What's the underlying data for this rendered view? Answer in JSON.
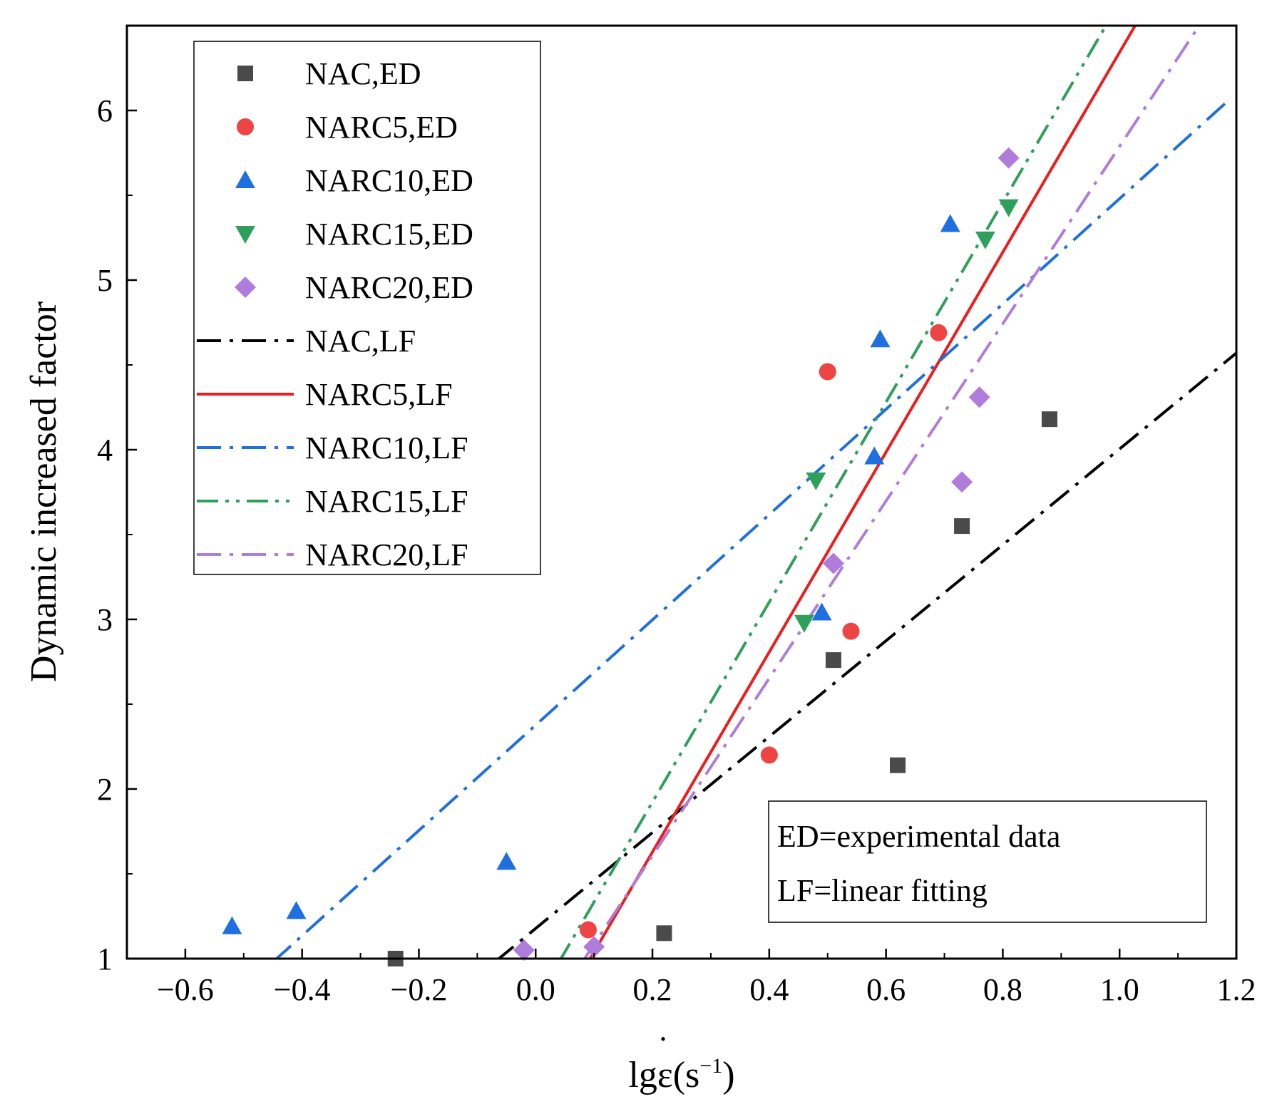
{
  "chart_data": {
    "type": "scatter",
    "title": "",
    "xlabel": "lgε(s⁻¹)",
    "xlabel_parts": {
      "main": "lgε(s",
      "sup": "−1",
      "close": ")",
      "dot": "•"
    },
    "ylabel": "Dynamic increased factor",
    "xlim": [
      -0.7,
      1.2
    ],
    "ylim": [
      1,
      6.5
    ],
    "xticks": [
      -0.6,
      -0.4,
      -0.2,
      0.0,
      0.2,
      0.4,
      0.6,
      0.8,
      1.0,
      1.2
    ],
    "xtick_labels": [
      "−0.6",
      "−0.4",
      "−0.2",
      "0.0",
      "0.2",
      "0.4",
      "0.6",
      "0.8",
      "1.0",
      "1.2"
    ],
    "yticks": [
      1,
      2,
      3,
      4,
      5,
      6
    ],
    "ytick_labels": [
      "1",
      "2",
      "3",
      "4",
      "5",
      "6"
    ],
    "legend_position": "top-left",
    "series": [
      {
        "name": "NAC,ED",
        "kind": "points",
        "marker": "square",
        "color": "#4a4a4a",
        "points": [
          [
            -0.24,
            1.0
          ],
          [
            0.22,
            1.15
          ],
          [
            0.51,
            2.76
          ],
          [
            0.62,
            2.14
          ],
          [
            0.73,
            3.55
          ],
          [
            0.88,
            4.18
          ]
        ]
      },
      {
        "name": "NARC5,ED",
        "kind": "points",
        "marker": "circle",
        "color": "#ef4444",
        "points": [
          [
            0.09,
            1.17
          ],
          [
            0.4,
            2.2
          ],
          [
            0.5,
            4.46
          ],
          [
            0.54,
            2.93
          ],
          [
            0.69,
            4.69
          ]
        ]
      },
      {
        "name": "NARC10,ED",
        "kind": "points",
        "marker": "triangle-up",
        "color": "#1f6fe0",
        "points": [
          [
            -0.52,
            1.19
          ],
          [
            -0.41,
            1.28
          ],
          [
            -0.05,
            1.57
          ],
          [
            0.49,
            3.04
          ],
          [
            0.58,
            3.96
          ],
          [
            0.59,
            4.65
          ],
          [
            0.71,
            5.33
          ]
        ]
      },
      {
        "name": "NARC15,ED",
        "kind": "points",
        "marker": "triangle-down",
        "color": "#2ea05a",
        "points": [
          [
            0.46,
            2.98
          ],
          [
            0.48,
            3.82
          ],
          [
            0.77,
            5.24
          ],
          [
            0.81,
            5.43
          ]
        ]
      },
      {
        "name": "NARC20,ED",
        "kind": "points",
        "marker": "diamond",
        "color": "#b07cdc",
        "points": [
          [
            -0.02,
            1.05
          ],
          [
            0.1,
            1.07
          ],
          [
            0.51,
            3.33
          ],
          [
            0.73,
            3.81
          ],
          [
            0.76,
            4.31
          ],
          [
            0.81,
            5.72
          ]
        ]
      },
      {
        "name": "NAC,LF",
        "kind": "line",
        "dash": "dashdot",
        "color": "#000000",
        "points": [
          [
            -0.07,
            0.98
          ],
          [
            1.2,
            4.57
          ]
        ]
      },
      {
        "name": "NARC5,LF",
        "kind": "line",
        "dash": "solid",
        "color": "#ee1c1c",
        "points": [
          [
            0.09,
            0.98
          ],
          [
            1.03,
            6.52
          ]
        ]
      },
      {
        "name": "NARC10,LF",
        "kind": "line",
        "dash": "dashdot",
        "color": "#1f6fe0",
        "points": [
          [
            -0.45,
            0.98
          ],
          [
            1.19,
            6.07
          ]
        ]
      },
      {
        "name": "NARC15,LF",
        "kind": "line",
        "dash": "dashdotdot",
        "color": "#2ea05a",
        "points": [
          [
            0.04,
            0.98
          ],
          [
            0.98,
            6.52
          ]
        ]
      },
      {
        "name": "NARC20,LF",
        "kind": "line",
        "dash": "dashdot",
        "color": "#b07cdc",
        "points": [
          [
            0.08,
            0.98
          ],
          [
            1.14,
            6.52
          ]
        ]
      }
    ],
    "annotation": {
      "lines": [
        "ED=experimental data",
        "LF=linear fitting"
      ],
      "position": "bottom-right"
    }
  }
}
